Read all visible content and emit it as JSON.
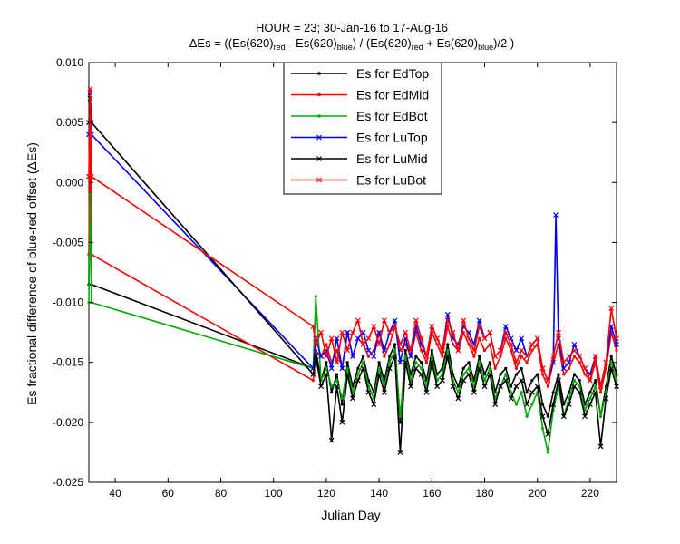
{
  "chart_data": {
    "type": "line",
    "title": {
      "line1": "HOUR = 23; 30-Jan-16 to 17-Aug-16",
      "line2": [
        {
          "t": "ΔEs = ((Es(620)",
          "s": "n"
        },
        {
          "t": "red",
          "s": "sub"
        },
        {
          "t": " - Es(620)",
          "s": "n"
        },
        {
          "t": "blue",
          "s": "sub"
        },
        {
          "t": ") / (Es(620)",
          "s": "n"
        },
        {
          "t": "red",
          "s": "sub"
        },
        {
          "t": " + Es(620)",
          "s": "n"
        },
        {
          "t": "blue",
          "s": "sub"
        },
        {
          "t": ")/2  )",
          "s": "n"
        }
      ]
    },
    "xlabel": "Julian Day",
    "ylabel": "Es fractional difference of blue-red offset (ΔEs)",
    "xlim": [
      30,
      230
    ],
    "ylim": [
      -0.025,
      0.01
    ],
    "xticks": [
      40,
      60,
      80,
      100,
      120,
      140,
      160,
      180,
      200,
      220
    ],
    "xtick_labels": [
      "40",
      "60",
      "80",
      "100",
      "120",
      "140",
      "160",
      "180",
      "200",
      "220"
    ],
    "yticks": [
      0.01,
      0.005,
      0,
      -0.005,
      -0.01,
      -0.015,
      -0.02,
      -0.025
    ],
    "ytick_labels": [
      "0.010",
      "0.005",
      "0.000",
      "-0.005",
      "-0.010",
      "-0.015",
      "-0.020",
      "-0.025"
    ],
    "grid": false,
    "legend_position": "top-center",
    "series": [
      {
        "name": "Es for EdTop",
        "color": "#000000",
        "marker": "dot",
        "x": [
          30,
          30.5,
          31,
          115,
          116,
          118,
          120,
          122,
          124,
          126,
          128,
          130,
          132,
          134,
          136,
          138,
          140,
          142,
          144,
          146,
          148,
          150,
          152,
          154,
          156,
          158,
          160,
          162,
          164,
          166,
          168,
          170,
          172,
          174,
          176,
          178,
          180,
          182,
          184,
          186,
          188,
          190,
          192,
          194,
          196,
          198,
          200,
          202,
          204,
          206,
          208,
          210,
          212,
          214,
          216,
          218,
          220,
          222,
          224,
          226,
          228,
          230
        ],
        "y": [
          -0.0085,
          0.006,
          -0.0085,
          -0.0155,
          -0.014,
          -0.0165,
          -0.015,
          -0.0175,
          -0.016,
          -0.0185,
          -0.015,
          -0.017,
          -0.0155,
          -0.0145,
          -0.0165,
          -0.0175,
          -0.015,
          -0.0165,
          -0.0145,
          -0.0135,
          -0.02,
          -0.014,
          -0.016,
          -0.0145,
          -0.015,
          -0.0165,
          -0.014,
          -0.016,
          -0.0155,
          -0.0135,
          -0.016,
          -0.017,
          -0.0155,
          -0.015,
          -0.0165,
          -0.0145,
          -0.016,
          -0.015,
          -0.0175,
          -0.016,
          -0.0155,
          -0.017,
          -0.016,
          -0.0155,
          -0.0175,
          -0.0165,
          -0.016,
          -0.0185,
          -0.0195,
          -0.0175,
          -0.016,
          -0.0185,
          -0.0175,
          -0.016,
          -0.0165,
          -0.0185,
          -0.0175,
          -0.0165,
          -0.0195,
          -0.017,
          -0.0145,
          -0.016
        ]
      },
      {
        "name": "Es for EdMid",
        "color": "#ff0000",
        "marker": "dot",
        "x": [
          30,
          30.5,
          31,
          115,
          116,
          118,
          120,
          122,
          124,
          126,
          128,
          130,
          132,
          134,
          136,
          138,
          140,
          142,
          144,
          146,
          148,
          150,
          152,
          154,
          156,
          158,
          160,
          162,
          164,
          166,
          168,
          170,
          172,
          174,
          176,
          178,
          180,
          182,
          184,
          186,
          188,
          190,
          192,
          194,
          196,
          198,
          200,
          202,
          204,
          206,
          208,
          210,
          212,
          214,
          216,
          218,
          220,
          222,
          224,
          226,
          228,
          230
        ],
        "y": [
          -0.006,
          0.0065,
          -0.006,
          -0.0165,
          -0.014,
          -0.0145,
          -0.0135,
          -0.015,
          -0.014,
          -0.0155,
          -0.0125,
          -0.0145,
          -0.013,
          -0.0135,
          -0.0145,
          -0.014,
          -0.0125,
          -0.0145,
          -0.0135,
          -0.012,
          -0.014,
          -0.0135,
          -0.0145,
          -0.0125,
          -0.014,
          -0.015,
          -0.0125,
          -0.0135,
          -0.0145,
          -0.012,
          -0.0135,
          -0.014,
          -0.0125,
          -0.0135,
          -0.0145,
          -0.013,
          -0.014,
          -0.0135,
          -0.0155,
          -0.0145,
          -0.013,
          -0.014,
          -0.0155,
          -0.0145,
          -0.015,
          -0.014,
          -0.0135,
          -0.016,
          -0.017,
          -0.015,
          -0.0135,
          -0.016,
          -0.0155,
          -0.0145,
          -0.015,
          -0.016,
          -0.0165,
          -0.015,
          -0.0175,
          -0.0155,
          -0.0125,
          -0.014
        ]
      },
      {
        "name": "Es for EdBot",
        "color": "#00aa00",
        "marker": "dot",
        "x": [
          30,
          30.5,
          31,
          115,
          116,
          118,
          120,
          122,
          124,
          126,
          128,
          130,
          132,
          134,
          136,
          138,
          140,
          142,
          144,
          146,
          148,
          150,
          152,
          154,
          156,
          158,
          160,
          162,
          164,
          166,
          168,
          170,
          172,
          174,
          176,
          178,
          180,
          182,
          184,
          186,
          188,
          190,
          192,
          194,
          196,
          198,
          200,
          202,
          204,
          206,
          208,
          210,
          212,
          214,
          216,
          218,
          220,
          222,
          224,
          226,
          228,
          230
        ],
        "y": [
          -0.01,
          -0.001,
          -0.01,
          -0.0155,
          -0.0095,
          -0.0165,
          -0.0155,
          -0.017,
          -0.0165,
          -0.018,
          -0.0155,
          -0.0175,
          -0.016,
          -0.015,
          -0.017,
          -0.018,
          -0.0155,
          -0.017,
          -0.015,
          -0.014,
          -0.0195,
          -0.0145,
          -0.0165,
          -0.015,
          -0.0155,
          -0.017,
          -0.0145,
          -0.0165,
          -0.016,
          -0.014,
          -0.0165,
          -0.0175,
          -0.016,
          -0.0155,
          -0.017,
          -0.015,
          -0.0165,
          -0.0155,
          -0.018,
          -0.017,
          -0.016,
          -0.0175,
          -0.0185,
          -0.0175,
          -0.0195,
          -0.0185,
          -0.0175,
          -0.0205,
          -0.0225,
          -0.019,
          -0.017,
          -0.0195,
          -0.018,
          -0.0165,
          -0.017,
          -0.019,
          -0.018,
          -0.017,
          -0.0195,
          -0.0175,
          -0.015,
          -0.0165
        ]
      },
      {
        "name": "Es for LuTop",
        "color": "#0000ff",
        "marker": "x",
        "x": [
          30,
          30.5,
          31,
          115,
          116,
          118,
          120,
          122,
          124,
          126,
          128,
          130,
          132,
          134,
          136,
          138,
          140,
          142,
          144,
          146,
          148,
          150,
          152,
          154,
          156,
          158,
          160,
          162,
          164,
          166,
          168,
          170,
          172,
          174,
          176,
          178,
          180,
          182,
          184,
          186,
          188,
          190,
          192,
          194,
          196,
          198,
          200,
          202,
          204,
          206,
          207,
          208,
          210,
          212,
          214,
          216,
          218,
          220,
          222,
          224,
          226,
          228,
          230
        ],
        "y": [
          0.004,
          0.0075,
          0.004,
          -0.0155,
          -0.013,
          -0.0145,
          -0.014,
          -0.0155,
          -0.013,
          -0.0155,
          -0.0125,
          -0.0145,
          -0.013,
          -0.0125,
          -0.014,
          -0.0145,
          -0.0125,
          -0.014,
          -0.0125,
          -0.0115,
          -0.015,
          -0.013,
          -0.0145,
          -0.012,
          -0.0135,
          -0.0145,
          -0.012,
          -0.013,
          -0.014,
          -0.011,
          -0.013,
          -0.0135,
          -0.012,
          -0.0125,
          -0.0135,
          -0.0115,
          -0.013,
          -0.0125,
          -0.0145,
          -0.014,
          -0.012,
          -0.013,
          -0.014,
          -0.013,
          -0.0145,
          -0.0135,
          -0.013,
          -0.0155,
          -0.0165,
          -0.015,
          -0.0027,
          -0.013,
          -0.0155,
          -0.015,
          -0.0135,
          -0.0145,
          -0.0155,
          -0.016,
          -0.0145,
          -0.017,
          -0.015,
          -0.012,
          -0.0135
        ]
      },
      {
        "name": "Es for LuMid",
        "color": "#000000",
        "marker": "x",
        "x": [
          30,
          30.5,
          31,
          115,
          116,
          118,
          120,
          122,
          124,
          126,
          128,
          130,
          132,
          134,
          136,
          138,
          140,
          142,
          144,
          146,
          148,
          150,
          152,
          154,
          156,
          158,
          160,
          162,
          164,
          166,
          168,
          170,
          172,
          174,
          176,
          178,
          180,
          182,
          184,
          186,
          188,
          190,
          192,
          194,
          196,
          198,
          200,
          202,
          204,
          206,
          208,
          210,
          212,
          214,
          216,
          218,
          220,
          222,
          224,
          226,
          228,
          230
        ],
        "y": [
          0.005,
          0.007,
          0.005,
          -0.016,
          -0.0145,
          -0.017,
          -0.016,
          -0.0215,
          -0.017,
          -0.02,
          -0.016,
          -0.018,
          -0.0165,
          -0.0155,
          -0.0175,
          -0.0185,
          -0.016,
          -0.0175,
          -0.0155,
          -0.0145,
          -0.0225,
          -0.015,
          -0.017,
          -0.0155,
          -0.016,
          -0.0175,
          -0.015,
          -0.017,
          -0.0165,
          -0.0145,
          -0.017,
          -0.018,
          -0.0165,
          -0.016,
          -0.0175,
          -0.0155,
          -0.017,
          -0.016,
          -0.0185,
          -0.017,
          -0.0165,
          -0.018,
          -0.017,
          -0.0165,
          -0.0185,
          -0.0175,
          -0.017,
          -0.0195,
          -0.021,
          -0.0185,
          -0.0165,
          -0.0195,
          -0.0185,
          -0.017,
          -0.0175,
          -0.0195,
          -0.0185,
          -0.0175,
          -0.022,
          -0.018,
          -0.0155,
          -0.017
        ]
      },
      {
        "name": "Es for LuBot",
        "color": "#ff0000",
        "marker": "x",
        "x": [
          30,
          30.5,
          31,
          115,
          116,
          118,
          120,
          122,
          124,
          126,
          128,
          130,
          132,
          134,
          136,
          138,
          140,
          142,
          144,
          146,
          148,
          150,
          152,
          154,
          156,
          158,
          160,
          162,
          164,
          166,
          168,
          170,
          172,
          174,
          176,
          178,
          180,
          182,
          184,
          186,
          188,
          190,
          192,
          194,
          196,
          198,
          200,
          202,
          204,
          206,
          208,
          210,
          212,
          214,
          216,
          218,
          220,
          222,
          224,
          226,
          228,
          230
        ],
        "y": [
          0.0005,
          0.0078,
          0.0005,
          -0.012,
          -0.0135,
          -0.0125,
          -0.0145,
          -0.013,
          -0.015,
          -0.0125,
          -0.014,
          -0.0125,
          -0.0115,
          -0.0135,
          -0.013,
          -0.012,
          -0.0135,
          -0.0115,
          -0.0125,
          -0.012,
          -0.0135,
          -0.0125,
          -0.014,
          -0.0115,
          -0.013,
          -0.0145,
          -0.012,
          -0.013,
          -0.014,
          -0.0115,
          -0.0125,
          -0.014,
          -0.0115,
          -0.013,
          -0.014,
          -0.012,
          -0.013,
          -0.0125,
          -0.0145,
          -0.014,
          -0.0125,
          -0.0135,
          -0.015,
          -0.014,
          -0.0145,
          -0.0135,
          -0.013,
          -0.0155,
          -0.0165,
          -0.0145,
          -0.0125,
          -0.015,
          -0.0145,
          -0.014,
          -0.0145,
          -0.0155,
          -0.0165,
          -0.0145,
          -0.017,
          -0.015,
          -0.0105,
          -0.013
        ]
      }
    ]
  }
}
